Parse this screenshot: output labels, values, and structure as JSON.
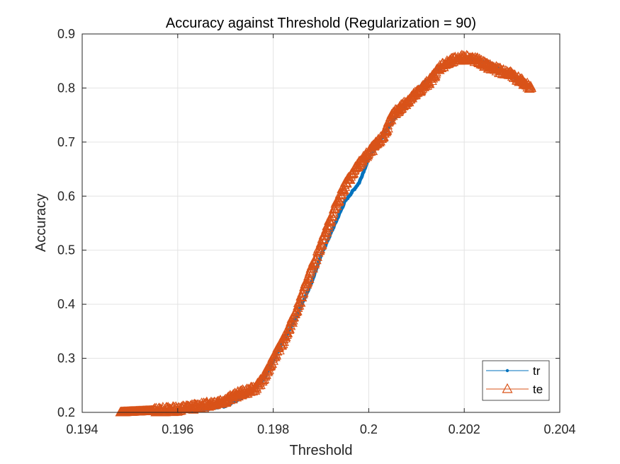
{
  "chart_data": {
    "type": "line",
    "title": "Accuracy against Threshold (Regularization = 90)",
    "xlabel": "Threshold",
    "ylabel": "Accuracy",
    "xlim": [
      0.194,
      0.204
    ],
    "ylim": [
      0.2,
      0.9
    ],
    "xticks": [
      0.194,
      0.196,
      0.198,
      0.2,
      0.202,
      0.204
    ],
    "xtick_labels": [
      "0.194",
      "0.196",
      "0.198",
      "0.2",
      "0.202",
      "0.204"
    ],
    "yticks": [
      0.2,
      0.3,
      0.4,
      0.5,
      0.6,
      0.7,
      0.8,
      0.9
    ],
    "ytick_labels": [
      "0.2",
      "0.3",
      "0.4",
      "0.5",
      "0.6",
      "0.7",
      "0.8",
      "0.9"
    ],
    "grid": true,
    "legend_position": "bottom-right",
    "series": [
      {
        "name": "tr",
        "color": "#0072BD",
        "marker": "dot",
        "x": [
          0.1948,
          0.1955,
          0.196,
          0.1965,
          0.197,
          0.1975,
          0.1978,
          0.198,
          0.1982,
          0.1985,
          0.1988,
          0.199,
          0.1993,
          0.1995,
          0.1998,
          0.2,
          0.2005,
          0.201,
          0.2015,
          0.202,
          0.2025,
          0.203,
          0.2034
        ],
        "y": [
          0.2,
          0.2,
          0.202,
          0.205,
          0.212,
          0.235,
          0.262,
          0.295,
          0.33,
          0.38,
          0.44,
          0.49,
          0.55,
          0.59,
          0.625,
          0.67,
          0.74,
          0.795,
          0.838,
          0.855,
          0.848,
          0.822,
          0.8
        ]
      },
      {
        "name": "te",
        "color": "#D95319",
        "marker": "triangle",
        "x": [
          0.1948,
          0.1955,
          0.196,
          0.1965,
          0.197,
          0.1973,
          0.1976,
          0.1978,
          0.198,
          0.1982,
          0.1985,
          0.1987,
          0.199,
          0.1993,
          0.1995,
          0.1998,
          0.2,
          0.2003,
          0.2005,
          0.2008,
          0.201,
          0.2013,
          0.2015,
          0.2018,
          0.202,
          0.2023,
          0.2025,
          0.2028,
          0.203,
          0.2032,
          0.2034
        ],
        "y": [
          0.2,
          0.203,
          0.206,
          0.212,
          0.222,
          0.235,
          0.243,
          0.262,
          0.3,
          0.33,
          0.39,
          0.44,
          0.51,
          0.58,
          0.62,
          0.66,
          0.68,
          0.71,
          0.75,
          0.775,
          0.79,
          0.815,
          0.84,
          0.852,
          0.857,
          0.85,
          0.84,
          0.83,
          0.825,
          0.812,
          0.8
        ]
      }
    ]
  }
}
